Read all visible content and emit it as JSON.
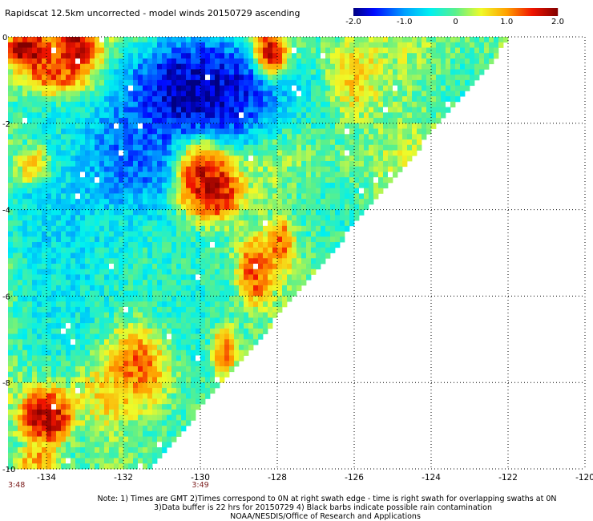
{
  "chart_data": {
    "type": "heatmap",
    "title": "Rapidscat 12.5km uncorrected - model winds 20150729 ascending",
    "colorbar": {
      "min": -2.0,
      "max": 2.0,
      "ticks": [
        {
          "value": -2.0,
          "label": "-2.0"
        },
        {
          "value": -1.0,
          "label": "-1.0"
        },
        {
          "value": 0,
          "label": "0"
        },
        {
          "value": 1.0,
          "label": "1.0"
        },
        {
          "value": 2.0,
          "label": "2.0"
        }
      ]
    },
    "xlim": [
      -135,
      -120
    ],
    "ylim": [
      -10,
      0
    ],
    "x_ticks": [
      {
        "value": -134,
        "label": "-134"
      },
      {
        "value": -132,
        "label": "-132"
      },
      {
        "value": -130,
        "label": "-130"
      },
      {
        "value": -128,
        "label": "-128"
      },
      {
        "value": -126,
        "label": "-126"
      },
      {
        "value": -124,
        "label": "-124"
      },
      {
        "value": -122,
        "label": "-122"
      },
      {
        "value": -120,
        "label": "-120"
      }
    ],
    "y_ticks": [
      {
        "value": 0,
        "label": "0"
      },
      {
        "value": -2,
        "label": "-2"
      },
      {
        "value": -4,
        "label": "-4"
      },
      {
        "value": -6,
        "label": "-6"
      },
      {
        "value": -8,
        "label": "-8"
      },
      {
        "value": -10,
        "label": "-10"
      }
    ],
    "grid": true,
    "time_labels": [
      {
        "lon": -135,
        "label": "3:48"
      },
      {
        "lon": -130,
        "label": "3:49"
      }
    ],
    "swath_edge": [
      [
        -135,
        -10
      ],
      [
        -131.3,
        -10
      ],
      [
        -121.9,
        0
      ],
      [
        -135,
        0
      ]
    ],
    "regions": [
      {
        "lon": -130.0,
        "lat": -1.3,
        "r_lon": 1.9,
        "r_lat": 1.2,
        "value": -1.8
      },
      {
        "lon": -131.8,
        "lat": -2.8,
        "r_lon": 1.3,
        "r_lat": 1.2,
        "value": -1.3
      },
      {
        "lon": -133.2,
        "lat": -4.5,
        "r_lon": 1.6,
        "r_lat": 2.2,
        "value": -0.6
      },
      {
        "lon": -131.0,
        "lat": -6.0,
        "r_lon": 1.8,
        "r_lat": 1.8,
        "value": -0.3
      },
      {
        "lon": -130.0,
        "lat": -3.2,
        "r_lon": 0.7,
        "r_lat": 0.9,
        "value": 1.7
      },
      {
        "lon": -129.6,
        "lat": -3.6,
        "r_lon": 0.6,
        "r_lat": 0.6,
        "value": 1.5
      },
      {
        "lon": -133.7,
        "lat": -0.7,
        "r_lon": 0.9,
        "r_lat": 0.6,
        "value": 1.4
      },
      {
        "lon": -134.5,
        "lat": -0.3,
        "r_lon": 0.5,
        "r_lat": 0.4,
        "value": 1.9
      },
      {
        "lon": -133.2,
        "lat": -0.2,
        "r_lon": 0.5,
        "r_lat": 0.4,
        "value": 1.7
      },
      {
        "lon": -134.3,
        "lat": -3.0,
        "r_lon": 0.4,
        "r_lat": 0.4,
        "value": 1.1
      },
      {
        "lon": -131.6,
        "lat": -7.4,
        "r_lon": 0.8,
        "r_lat": 0.9,
        "value": 1.5
      },
      {
        "lon": -134.0,
        "lat": -8.8,
        "r_lon": 0.6,
        "r_lat": 0.6,
        "value": 1.8
      },
      {
        "lon": -128.6,
        "lat": -5.4,
        "r_lon": 0.4,
        "r_lat": 0.7,
        "value": 1.3
      },
      {
        "lon": -127.9,
        "lat": -4.8,
        "r_lon": 0.3,
        "r_lat": 0.5,
        "value": 1.2
      },
      {
        "lon": -128.2,
        "lat": -0.4,
        "r_lon": 0.4,
        "r_lat": 0.5,
        "value": 1.8
      },
      {
        "lon": -126.0,
        "lat": -1.0,
        "r_lon": 0.6,
        "r_lat": 0.8,
        "value": 0.7
      },
      {
        "lon": -129.4,
        "lat": -7.2,
        "r_lon": 0.3,
        "r_lat": 0.5,
        "value": 1.4
      },
      {
        "lon": -134.2,
        "lat": -9.8,
        "r_lon": 0.5,
        "r_lat": 0.3,
        "value": 1.0
      },
      {
        "lon": -132.5,
        "lat": -8.3,
        "r_lon": 0.7,
        "r_lat": 0.6,
        "value": 0.6
      }
    ]
  },
  "notes": {
    "line1": "Note: 1) Times are GMT 2)Times correspond to 0N at right swath edge - time is right swath for overlapping swaths at 0N",
    "line2": "3)Data buffer is 22 hrs for 20150729 4) Black barbs indicate possible rain contamination",
    "line3": "NOAA/NESDIS/Office of Research and Applications"
  }
}
